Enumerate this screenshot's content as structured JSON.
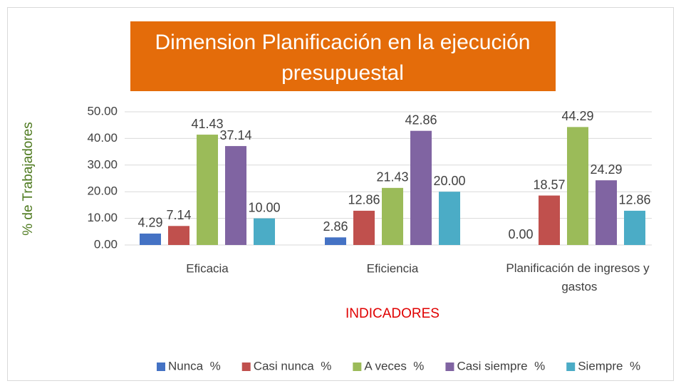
{
  "chart_data": {
    "type": "bar",
    "title": [
      "Dimension Planificación en la ejecución",
      "presupuestal"
    ],
    "title_background": "#e46c0a",
    "y_label": "% de Trabajadores",
    "x_label": "INDICADORES",
    "categories": [
      "Eficacia",
      "Eficiencia",
      "Planificación de ingresos y gastos"
    ],
    "series": [
      {
        "name": "Nunca  %",
        "color": "#4472c4",
        "values": [
          4.29,
          2.86,
          0
        ],
        "value_labels": [
          "4.29",
          "2.86",
          "0.00"
        ]
      },
      {
        "name": "Casi nunca  %",
        "color": "#c0504d",
        "values": [
          7.14,
          12.86,
          18.57
        ],
        "value_labels": [
          "7.14",
          "12.86",
          "18.57"
        ]
      },
      {
        "name": "A veces  %",
        "color": "#9bbb59",
        "values": [
          41.43,
          21.43,
          44.29
        ],
        "value_labels": [
          "41.43",
          "21.43",
          "44.29"
        ]
      },
      {
        "name": "Casi siempre  %",
        "color": "#8064a2",
        "values": [
          37.14,
          42.86,
          24.29
        ],
        "value_labels": [
          "37.14",
          "42.86",
          "24.29"
        ]
      },
      {
        "name": "Siempre  %",
        "color": "#4bacc6",
        "values": [
          10,
          20,
          12.86
        ],
        "value_labels": [
          "10.00",
          "20.00",
          "12.86"
        ]
      }
    ],
    "ylim": [
      0,
      50
    ],
    "yticks": [
      {
        "value": 0,
        "label": "0.00"
      },
      {
        "value": 10,
        "label": "10.00"
      },
      {
        "value": 20,
        "label": "20.00"
      },
      {
        "value": 30,
        "label": "30.00"
      },
      {
        "value": 40,
        "label": "40.00"
      },
      {
        "value": 50,
        "label": "50.00"
      }
    ],
    "grid": true,
    "legend": "bottom"
  }
}
